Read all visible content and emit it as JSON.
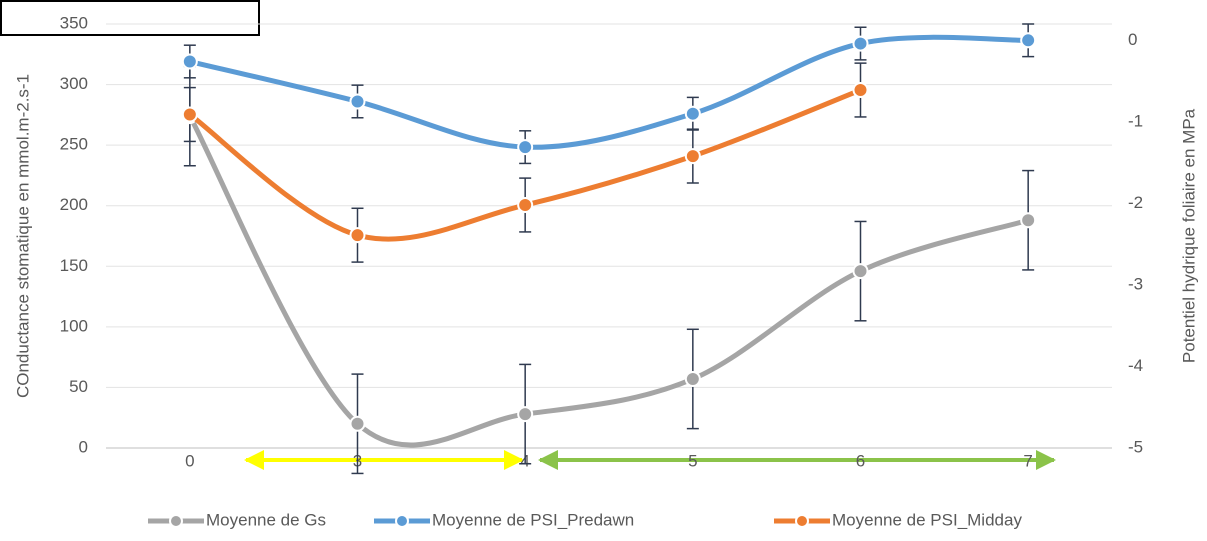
{
  "chart_data": {
    "type": "line",
    "y_label": "COnductance stomatique en mmol.m-2.s-1",
    "y2_label": "Potentiel hydrique foliaire en MPa",
    "categories": [
      "0",
      "3",
      "4",
      "5",
      "6",
      "7"
    ],
    "ylim": [
      0,
      350
    ],
    "yticks": [
      0,
      50,
      100,
      150,
      200,
      250,
      300,
      350
    ],
    "y2lim": [
      -5,
      0.2
    ],
    "y2ticks": [
      -5,
      -4,
      -3,
      -2,
      -1,
      0
    ],
    "grid": true,
    "smooth": true,
    "legend": "bottom",
    "series": [
      {
        "name": "Moyenne de Gs",
        "color": "#a5a5a5",
        "values": [
          274,
          20,
          28,
          57,
          146,
          188
        ],
        "errors": [
          41,
          41,
          41,
          41,
          41,
          41
        ]
      },
      {
        "name": "Moyenne de PSI_Predawn",
        "color": "#5b9bd5",
        "axis": "y2",
        "values": [
          -0.26,
          -0.75,
          -1.31,
          -0.9,
          -0.04,
          0
        ],
        "errors": [
          0.2,
          0.2,
          0.2,
          0.2,
          0.2,
          0.2
        ]
      },
      {
        "name": "Moyenne de PSI_Midday",
        "color": "#ed7d31",
        "axis": "y2",
        "values": [
          -0.91,
          -2.39,
          -2.02,
          -1.42,
          -0.61,
          null
        ],
        "errors": [
          0.33,
          0.33,
          0.33,
          0.33,
          0.33,
          null
        ]
      }
    ]
  }
}
